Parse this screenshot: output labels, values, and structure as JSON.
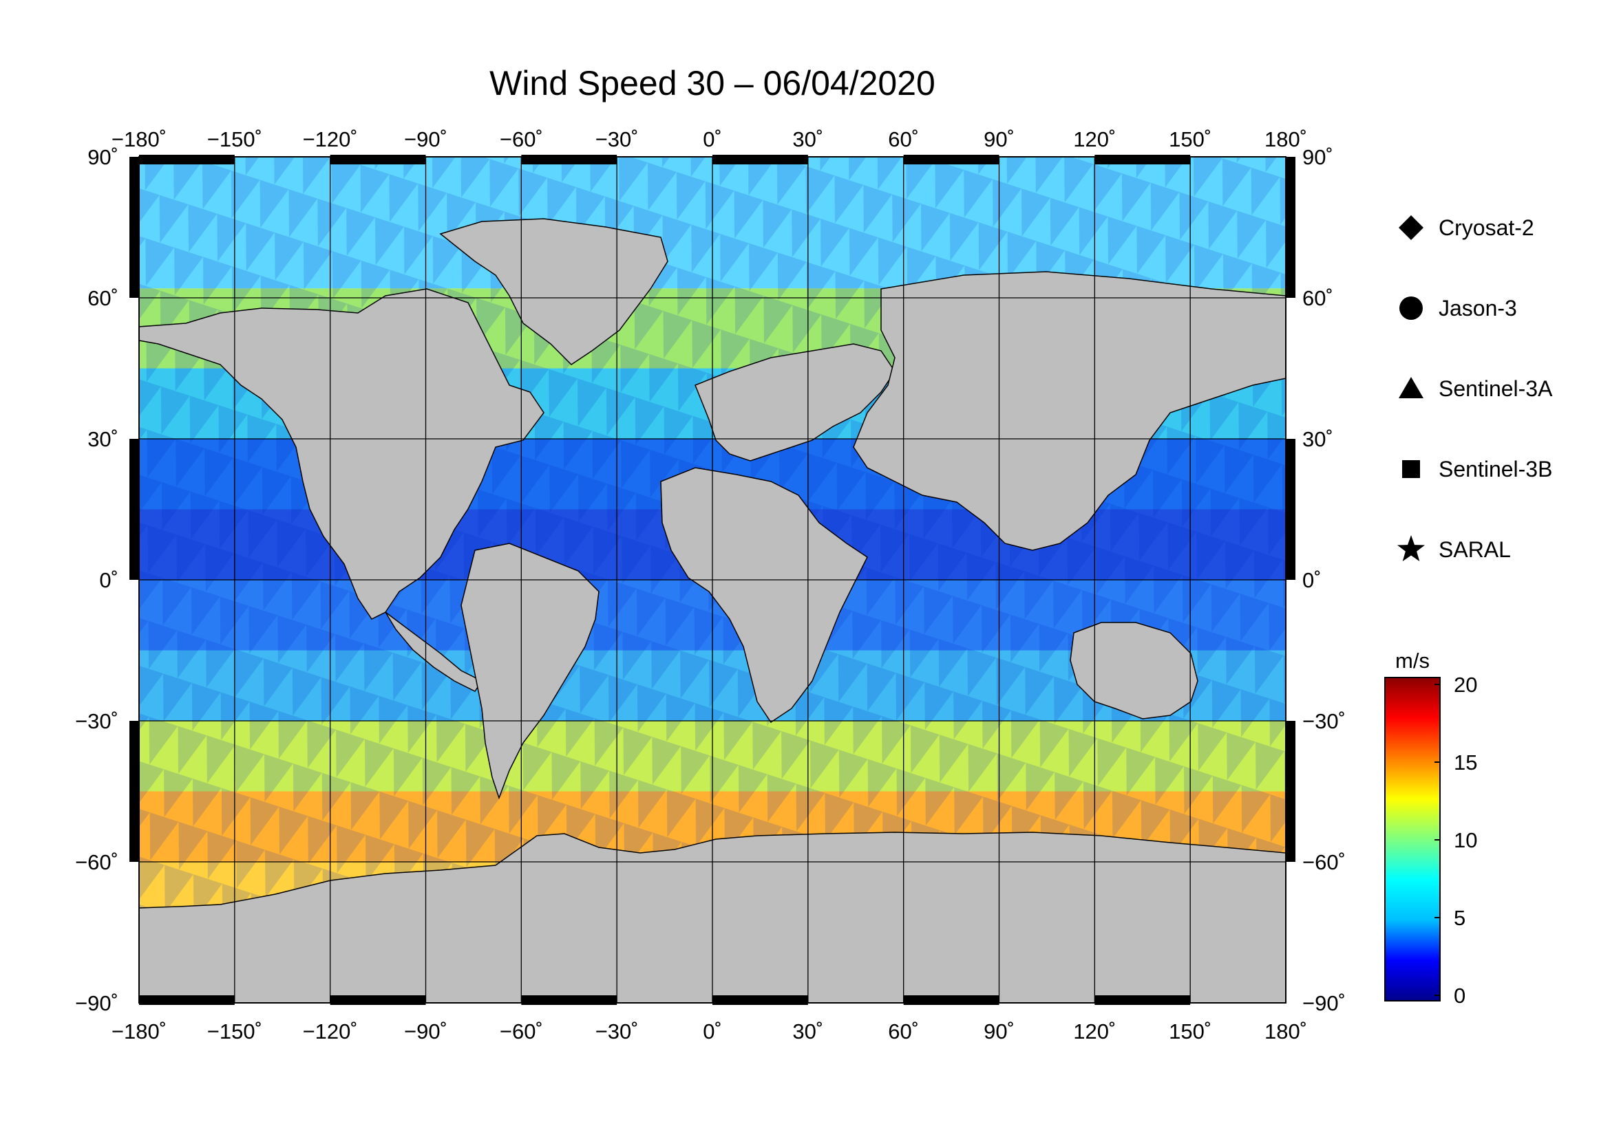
{
  "title": "Wind Speed 30 – 06/04/2020",
  "map": {
    "lon_range": [
      -180,
      180
    ],
    "lat_range": [
      -90,
      90
    ],
    "lon_ticks": [
      "−180˚",
      "−150˚",
      "−120˚",
      "−90˚",
      "−60˚",
      "−30˚",
      "0˚",
      "30˚",
      "60˚",
      "90˚",
      "120˚",
      "150˚",
      "180˚"
    ],
    "lat_ticks": [
      "90˚",
      "60˚",
      "30˚",
      "0˚",
      "−30˚",
      "−60˚",
      "−90˚"
    ],
    "land_color": "#bebebe",
    "ice_color": "#ffffff"
  },
  "legend": {
    "items": [
      {
        "label": "Cryosat-2",
        "icon": "diamond-icon"
      },
      {
        "label": "Jason-3",
        "icon": "circle-icon"
      },
      {
        "label": "Sentinel-3A",
        "icon": "triangle-icon"
      },
      {
        "label": "Sentinel-3B",
        "icon": "square-icon"
      },
      {
        "label": "SARAL",
        "icon": "star-icon"
      }
    ]
  },
  "colorbar": {
    "unit": "m/s",
    "ticks": [
      "20",
      "15",
      "10",
      "5",
      "0"
    ],
    "range": [
      0,
      20
    ],
    "colors": [
      "#00008b",
      "#0000ff",
      "#00bfff",
      "#00ffff",
      "#7fff7f",
      "#ffff00",
      "#ff7f00",
      "#ff0000",
      "#8b0000"
    ]
  }
}
